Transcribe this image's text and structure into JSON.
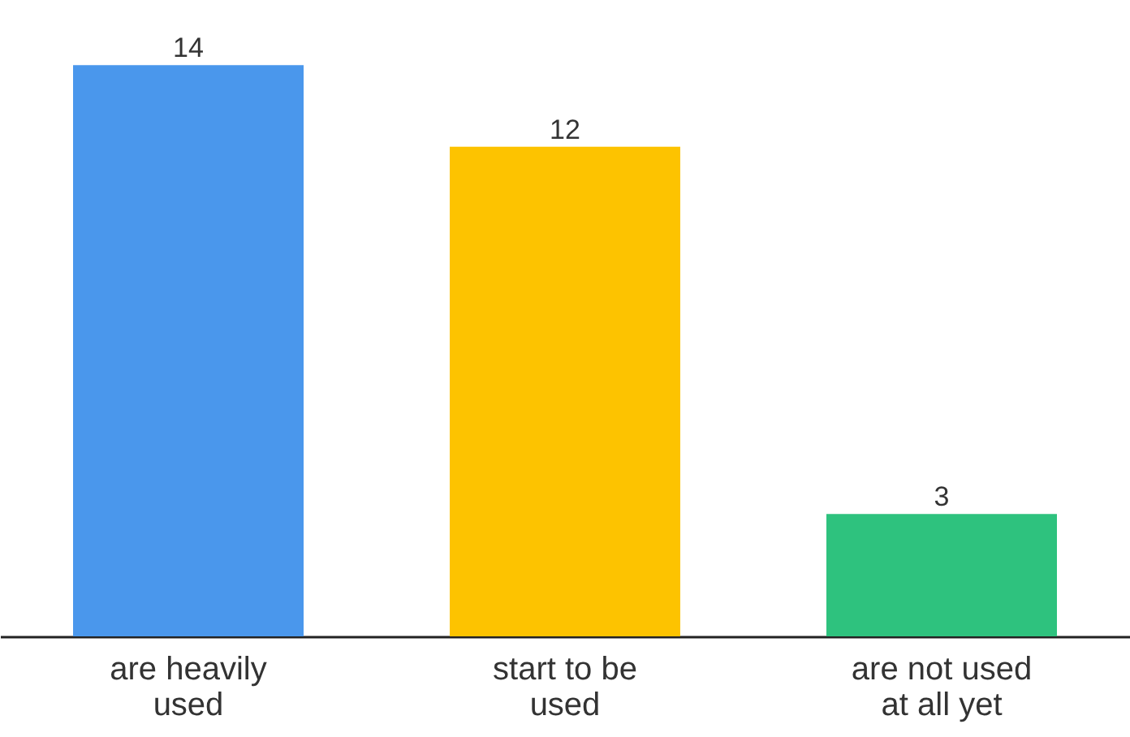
{
  "chart_data": {
    "type": "bar",
    "categories": [
      "are heavily used",
      "start to be used",
      "are not used at all yet"
    ],
    "values": [
      14,
      12,
      3
    ],
    "colors": [
      "#4a97ec",
      "#fdc300",
      "#2ec27e"
    ],
    "data_labels": true
  }
}
